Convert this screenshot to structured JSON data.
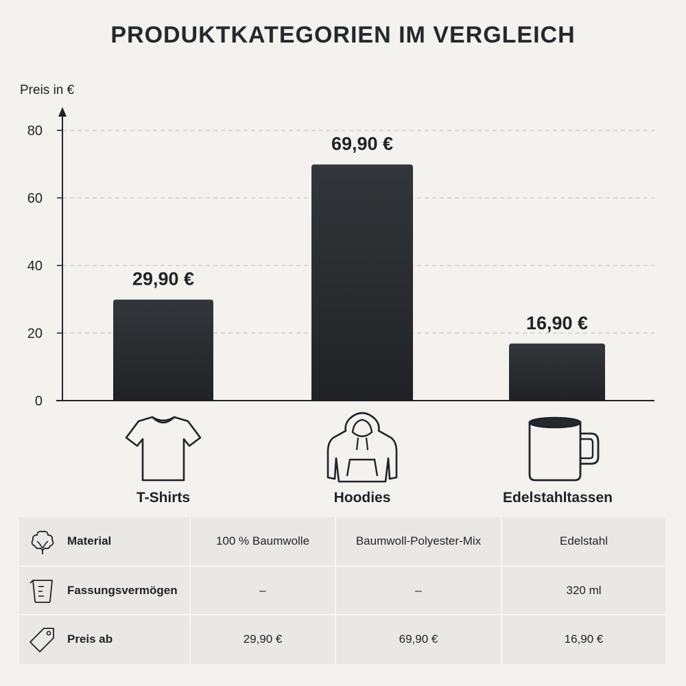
{
  "chart_data": {
    "type": "bar",
    "title": "PRODUKTKATEGORIEN IM VERGLEICH",
    "ylabel": "Preis in €",
    "categories": [
      "T-Shirts",
      "Hoodies",
      "Edelstahltassen"
    ],
    "values": [
      29.9,
      69.9,
      16.9
    ],
    "value_labels": [
      "29,90 €",
      "69,90 €",
      "16,90 €"
    ],
    "ylim": [
      0,
      80
    ],
    "yticks": [
      0,
      20,
      40,
      60,
      80
    ],
    "grid": true,
    "bar_color": "#2b2d31"
  },
  "category_icons": [
    "tshirt-icon",
    "hoodie-icon",
    "mug-icon"
  ],
  "table": {
    "rows": [
      {
        "label": "Material",
        "icon": "cotton-icon",
        "cells": [
          "100 % Baumwolle",
          "Baumwoll-Polyester-Mix",
          "Edelstahl"
        ]
      },
      {
        "label": "Fassungsvermögen",
        "icon": "measuring-cup-icon",
        "cells": [
          "–",
          "–",
          "320 ml"
        ]
      },
      {
        "label": "Preis ab",
        "icon": "price-tag-icon",
        "cells": [
          "29,90 €",
          "69,90 €",
          "16,90 €"
        ]
      }
    ]
  }
}
